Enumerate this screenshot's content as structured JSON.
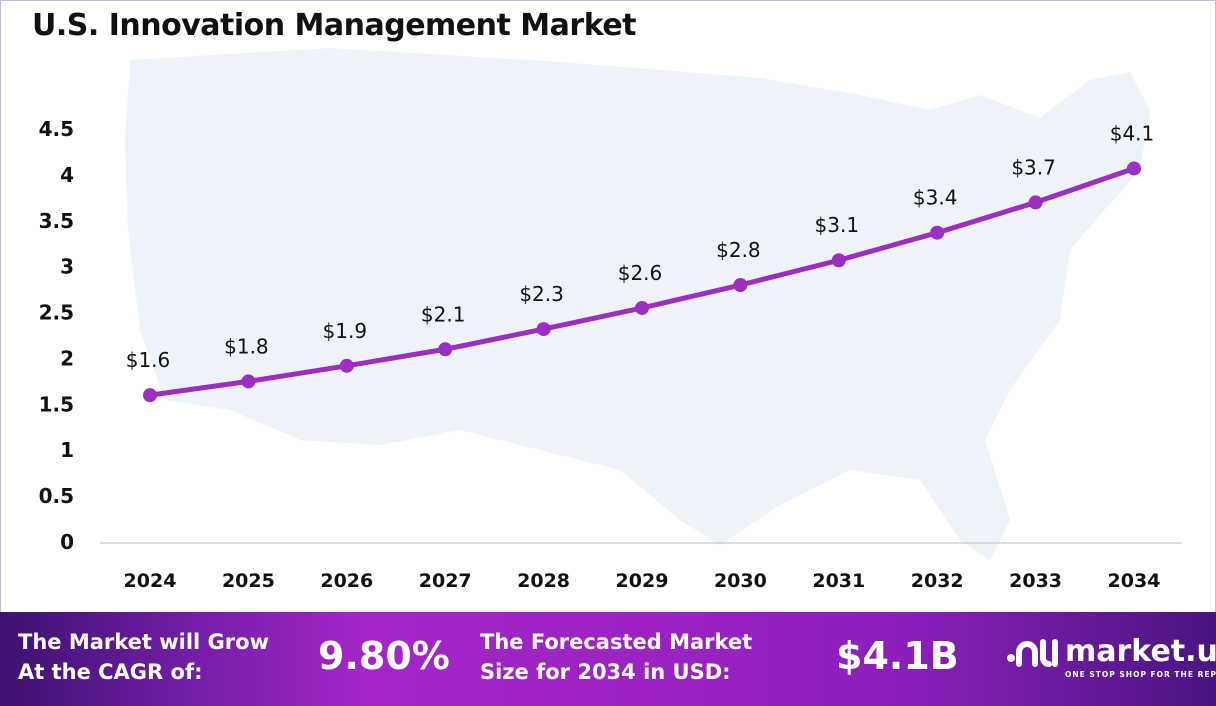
{
  "title": "U.S. Innovation Management Market",
  "colors": {
    "line": "#9B2FC1",
    "map": "#eef3fa",
    "footer_dark": "#3d1270",
    "footer_bright": "#a426c8"
  },
  "chart_data": {
    "type": "line",
    "title": "U.S. Innovation Management Market",
    "categories": [
      "2024",
      "2025",
      "2026",
      "2027",
      "2028",
      "2029",
      "2030",
      "2031",
      "2032",
      "2033",
      "2034"
    ],
    "values": [
      1.6,
      1.75,
      1.92,
      2.1,
      2.32,
      2.55,
      2.8,
      3.07,
      3.37,
      3.7,
      4.07
    ],
    "data_labels": [
      "$1.6",
      "$1.8",
      "$1.9",
      "$2.1",
      "$2.3",
      "$2.6",
      "$2.8",
      "$3.1",
      "$3.4",
      "$3.7",
      "$4.1"
    ],
    "yticks": [
      "0",
      "0.5",
      "1",
      "1.5",
      "2",
      "2.5",
      "3",
      "3.5",
      "4",
      "4.5"
    ],
    "ylim": [
      0,
      4.5
    ],
    "grid": false,
    "legend": "none",
    "xlabel": "",
    "ylabel": ""
  },
  "footer": {
    "cagr_label_line1": "The Market will Grow",
    "cagr_label_line2": "At the CAGR of:",
    "cagr_value": "9.80%",
    "forecast_label_line1": "The Forecasted Market",
    "forecast_label_line2": "Size for 2034 in USD:",
    "forecast_value": "$4.1B",
    "logo_name": "market.us",
    "logo_tagline": "ONE STOP SHOP FOR THE REPORTS"
  }
}
